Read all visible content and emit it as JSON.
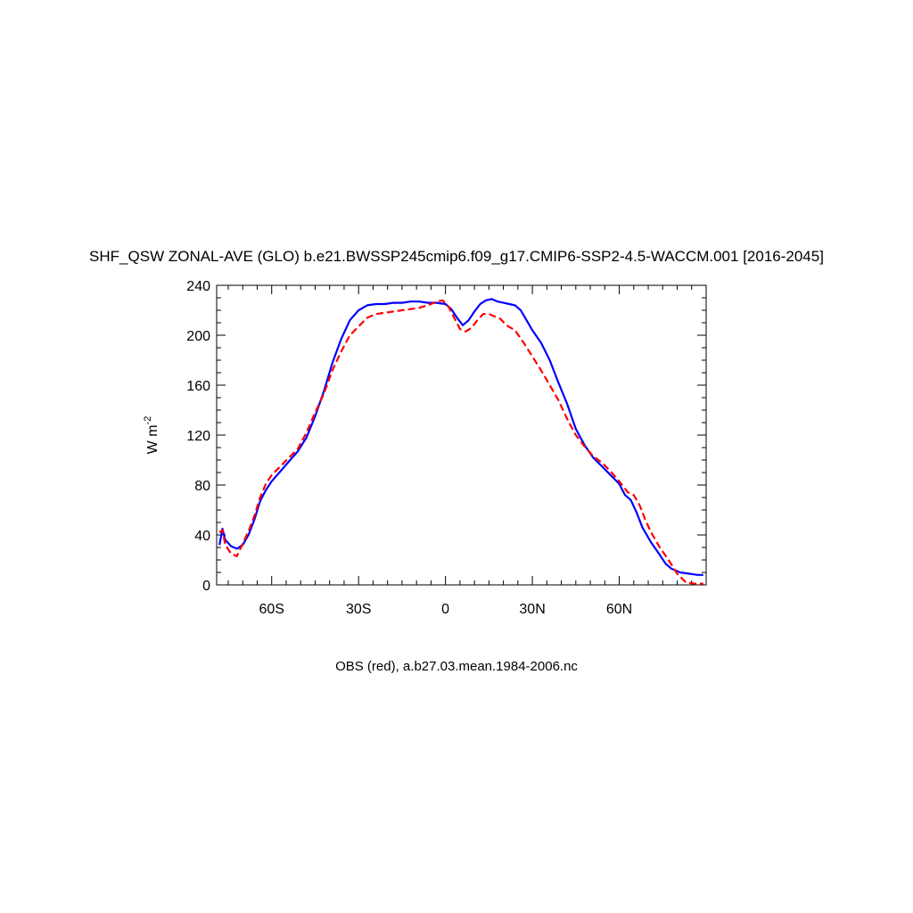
{
  "chart_data": {
    "type": "line",
    "title": "SHF_QSW ZONAL-AVE (GLO) b.e21.BWSSP245cmip6.f09_g17.CMIP6-SSP2-4.5-WACCM.001 [2016-2045]",
    "xlabel": "OBS (red), a.b27.03.mean.1984-2006.nc",
    "ylabel": "W m",
    "ylabel_sup": "-2",
    "xlim": [
      -79,
      90
    ],
    "ylim": [
      0,
      240
    ],
    "x_ticks": [
      {
        "value": -60,
        "label": "60S"
      },
      {
        "value": -30,
        "label": "30S"
      },
      {
        "value": 0,
        "label": "0"
      },
      {
        "value": 30,
        "label": "30N"
      },
      {
        "value": 60,
        "label": "60N"
      }
    ],
    "y_ticks": [
      {
        "value": 0,
        "label": "0"
      },
      {
        "value": 40,
        "label": "40"
      },
      {
        "value": 80,
        "label": "80"
      },
      {
        "value": 120,
        "label": "120"
      },
      {
        "value": 160,
        "label": "160"
      },
      {
        "value": 200,
        "label": "200"
      },
      {
        "value": 240,
        "label": "240"
      }
    ],
    "grid": false,
    "series": [
      {
        "color": "#0000ff",
        "dash": "solid",
        "points": [
          [
            -78,
            32
          ],
          [
            -77,
            45
          ],
          [
            -76,
            36
          ],
          [
            -74,
            31
          ],
          [
            -72,
            29
          ],
          [
            -70,
            32
          ],
          [
            -68,
            40
          ],
          [
            -66,
            52
          ],
          [
            -64,
            67
          ],
          [
            -62,
            76
          ],
          [
            -60,
            83
          ],
          [
            -57,
            91
          ],
          [
            -54,
            99
          ],
          [
            -51,
            107
          ],
          [
            -48,
            118
          ],
          [
            -45,
            135
          ],
          [
            -42,
            155
          ],
          [
            -39,
            178
          ],
          [
            -36,
            197
          ],
          [
            -33,
            212
          ],
          [
            -30,
            220
          ],
          [
            -27,
            224
          ],
          [
            -24,
            225
          ],
          [
            -21,
            225
          ],
          [
            -18,
            226
          ],
          [
            -15,
            226
          ],
          [
            -12,
            227
          ],
          [
            -9,
            227
          ],
          [
            -6,
            226
          ],
          [
            -3,
            226
          ],
          [
            0,
            225
          ],
          [
            2,
            221
          ],
          [
            4,
            214
          ],
          [
            6,
            208
          ],
          [
            8,
            212
          ],
          [
            10,
            219
          ],
          [
            12,
            225
          ],
          [
            14,
            228
          ],
          [
            16,
            229
          ],
          [
            18,
            227
          ],
          [
            20,
            226
          ],
          [
            22,
            225
          ],
          [
            24,
            224
          ],
          [
            26,
            220
          ],
          [
            28,
            212
          ],
          [
            30,
            204
          ],
          [
            33,
            194
          ],
          [
            36,
            180
          ],
          [
            39,
            162
          ],
          [
            42,
            145
          ],
          [
            45,
            125
          ],
          [
            48,
            112
          ],
          [
            51,
            102
          ],
          [
            54,
            95
          ],
          [
            57,
            88
          ],
          [
            60,
            81
          ],
          [
            62,
            72
          ],
          [
            64,
            68
          ],
          [
            66,
            58
          ],
          [
            68,
            46
          ],
          [
            71,
            34
          ],
          [
            74,
            24
          ],
          [
            76,
            17
          ],
          [
            78,
            13
          ],
          [
            81,
            10
          ],
          [
            84,
            9
          ],
          [
            87,
            8
          ],
          [
            89,
            8
          ]
        ]
      },
      {
        "color": "#ff0000",
        "dash": "dashed",
        "points": [
          [
            -78,
            42
          ],
          [
            -77,
            44
          ],
          [
            -76,
            32
          ],
          [
            -74,
            25
          ],
          [
            -72,
            23
          ],
          [
            -70,
            33
          ],
          [
            -68,
            43
          ],
          [
            -66,
            55
          ],
          [
            -64,
            70
          ],
          [
            -62,
            81
          ],
          [
            -60,
            88
          ],
          [
            -57,
            95
          ],
          [
            -54,
            102
          ],
          [
            -51,
            109
          ],
          [
            -48,
            122
          ],
          [
            -45,
            138
          ],
          [
            -42,
            153
          ],
          [
            -39,
            172
          ],
          [
            -36,
            187
          ],
          [
            -33,
            200
          ],
          [
            -30,
            207
          ],
          [
            -27,
            214
          ],
          [
            -24,
            217
          ],
          [
            -21,
            218
          ],
          [
            -18,
            219
          ],
          [
            -15,
            220
          ],
          [
            -12,
            221
          ],
          [
            -9,
            222
          ],
          [
            -6,
            224
          ],
          [
            -3,
            227
          ],
          [
            -1,
            228
          ],
          [
            1,
            223
          ],
          [
            3,
            214
          ],
          [
            5,
            205
          ],
          [
            7,
            203
          ],
          [
            9,
            206
          ],
          [
            11,
            212
          ],
          [
            13,
            217
          ],
          [
            15,
            217
          ],
          [
            17,
            215
          ],
          [
            19,
            213
          ],
          [
            21,
            208
          ],
          [
            24,
            204
          ],
          [
            27,
            194
          ],
          [
            30,
            183
          ],
          [
            33,
            172
          ],
          [
            36,
            160
          ],
          [
            39,
            148
          ],
          [
            42,
            133
          ],
          [
            45,
            120
          ],
          [
            48,
            111
          ],
          [
            51,
            103
          ],
          [
            54,
            98
          ],
          [
            57,
            91
          ],
          [
            60,
            83
          ],
          [
            63,
            74
          ],
          [
            65,
            72
          ],
          [
            67,
            64
          ],
          [
            69,
            52
          ],
          [
            71,
            42
          ],
          [
            74,
            30
          ],
          [
            77,
            20
          ],
          [
            80,
            9
          ],
          [
            83,
            2
          ],
          [
            86,
            1
          ],
          [
            89,
            1
          ]
        ]
      }
    ]
  }
}
